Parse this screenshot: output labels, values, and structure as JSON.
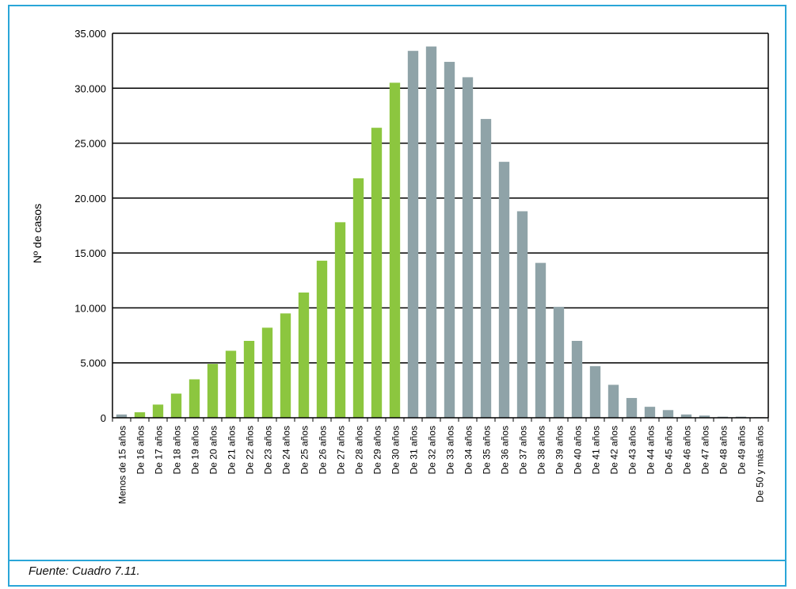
{
  "chart_data": {
    "type": "bar",
    "ylabel": "Nº de casos",
    "xlabel": "",
    "ylim": [
      0,
      35000
    ],
    "y_ticks": [
      0,
      5000,
      10000,
      15000,
      20000,
      25000,
      30000,
      35000
    ],
    "y_tick_labels": [
      "0",
      "5.000",
      "10.000",
      "15.000",
      "20.000",
      "25.000",
      "30.000",
      "35.000"
    ],
    "grid": true,
    "legend": "none",
    "categories": [
      "Menos de 15 años",
      "De 16 años",
      "De 17 años",
      "De 18 años",
      "De 19 años",
      "De 20 años",
      "De 21 años",
      "De 22 años",
      "De 23 años",
      "De 24 años",
      "De 25 años",
      "De 26 años",
      "De 27 años",
      "De 28 años",
      "De 29 años",
      "De 30 años",
      "De 31 años",
      "De 32 años",
      "De 33 años",
      "De 34 años",
      "De 35 años",
      "De 36 años",
      "De 37 años",
      "De 38 años",
      "De 39 años",
      "De 40 años",
      "De 41 años",
      "De 42 años",
      "De 43 años",
      "De 44 años",
      "De 45 años",
      "De 46 años",
      "De 47 años",
      "De 48 años",
      "De 49 años",
      "De 50 y más años"
    ],
    "values": [
      300,
      500,
      1200,
      2200,
      3500,
      4900,
      6100,
      7000,
      8200,
      9500,
      11400,
      14300,
      17800,
      21800,
      26400,
      30500,
      33400,
      33800,
      32400,
      31000,
      27200,
      23300,
      18800,
      14100,
      10100,
      7000,
      4700,
      3000,
      1800,
      1000,
      700,
      300,
      200,
      100,
      100,
      50
    ],
    "bar_colors": [
      "#8fa3a8",
      "#8cc63f",
      "#8cc63f",
      "#8cc63f",
      "#8cc63f",
      "#8cc63f",
      "#8cc63f",
      "#8cc63f",
      "#8cc63f",
      "#8cc63f",
      "#8cc63f",
      "#8cc63f",
      "#8cc63f",
      "#8cc63f",
      "#8cc63f",
      "#8cc63f",
      "#8fa3a8",
      "#8fa3a8",
      "#8fa3a8",
      "#8fa3a8",
      "#8fa3a8",
      "#8fa3a8",
      "#8fa3a8",
      "#8fa3a8",
      "#8fa3a8",
      "#8fa3a8",
      "#8fa3a8",
      "#8fa3a8",
      "#8fa3a8",
      "#8fa3a8",
      "#8fa3a8",
      "#8fa3a8",
      "#8fa3a8",
      "#8fa3a8",
      "#8fa3a8",
      "#8fa3a8"
    ]
  },
  "footer": {
    "source": "Fuente: Cuadro 7.11."
  },
  "colors": {
    "frame_border": "#2aa6d8",
    "green_bars": "#8cc63f",
    "gray_bars": "#8fa3a8"
  }
}
